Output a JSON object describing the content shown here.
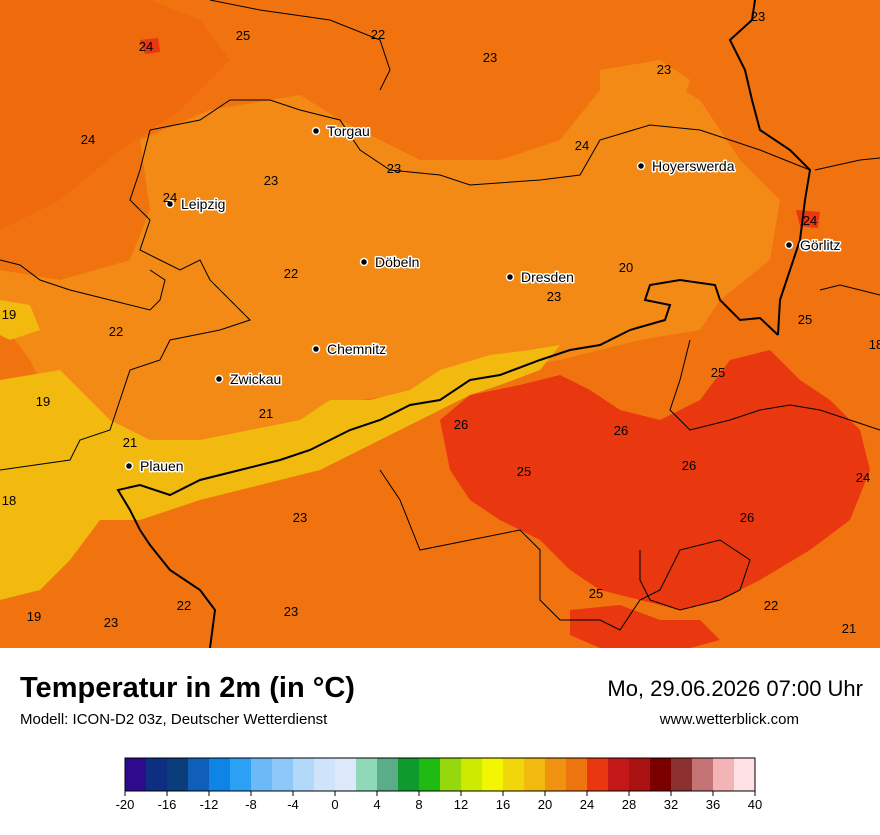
{
  "title": "Temperatur in 2m (in °C)",
  "model": "Modell: ICON-D2 03z, Deutscher Wetterdienst",
  "datetime": "Mo, 29.06.2026 07:00 Uhr",
  "website": "www.wetterblick.com",
  "cities": [
    {
      "name": "Torgau"
    },
    {
      "name": "Leipzig"
    },
    {
      "name": "Hoyerswerda"
    },
    {
      "name": "Görlitz"
    },
    {
      "name": "Döbeln"
    },
    {
      "name": "Dresden"
    },
    {
      "name": "Chemnitz"
    },
    {
      "name": "Zwickau"
    },
    {
      "name": "Plauen"
    }
  ],
  "temperature_labels": [
    "24",
    "25",
    "22",
    "23",
    "23",
    "23",
    "24",
    "23",
    "24",
    "23",
    "24",
    "24",
    "22",
    "20",
    "23",
    "19",
    "25",
    "22",
    "18",
    "25",
    "19",
    "21",
    "26",
    "26",
    "21",
    "26",
    "25",
    "24",
    "18",
    "23",
    "26",
    "19",
    "22",
    "25",
    "23",
    "22",
    "23",
    "21"
  ],
  "legend": {
    "ticks": [
      "-20",
      "-16",
      "-12",
      "-8",
      "-4",
      "0",
      "4",
      "8",
      "12",
      "16",
      "20",
      "24",
      "28",
      "32",
      "36",
      "40"
    ],
    "colors": [
      "#2e0a8c",
      "#0d2f82",
      "#0a3d7a",
      "#0f5fb8",
      "#0d84e6",
      "#2ba0f5",
      "#6db9f7",
      "#8ec8f8",
      "#b2d8fa",
      "#cfe3fb",
      "#dce9fb",
      "#8fd8b8",
      "#5aad88",
      "#0f9a2d",
      "#1fbb12",
      "#96d80d",
      "#cbea00",
      "#f2f600",
      "#f0d60a",
      "#f2b90f",
      "#f09311",
      "#ee7410",
      "#e9370f",
      "#c41818",
      "#aa1212",
      "#7a0000",
      "#8c2f2f",
      "#c47474",
      "#f2b4b4",
      "#ffe0e4"
    ]
  }
}
